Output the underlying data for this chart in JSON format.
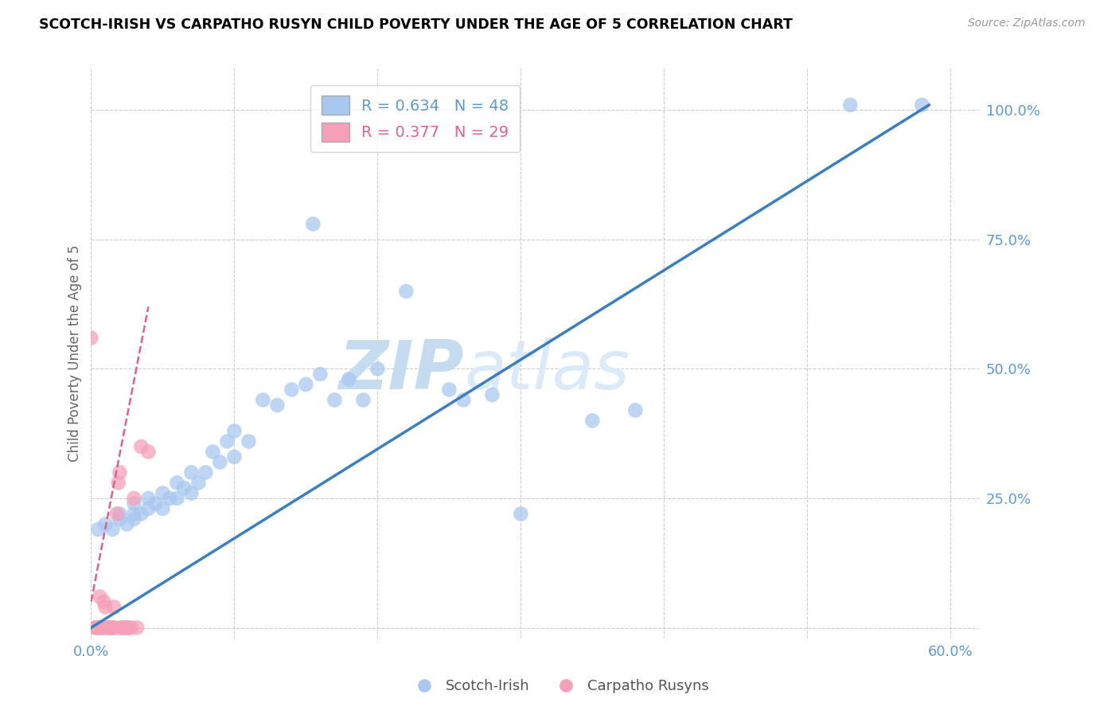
{
  "title": "SCOTCH-IRISH VS CARPATHO RUSYN CHILD POVERTY UNDER THE AGE OF 5 CORRELATION CHART",
  "source": "Source: ZipAtlas.com",
  "ylabel": "Child Poverty Under the Age of 5",
  "xlim": [
    0.0,
    0.62
  ],
  "ylim": [
    -0.02,
    1.08
  ],
  "blue_R": 0.634,
  "blue_N": 48,
  "pink_R": 0.377,
  "pink_N": 29,
  "blue_color": "#a8c8f0",
  "blue_line_color": "#3a7fc1",
  "pink_color": "#f5a0b8",
  "pink_line_color": "#e06090",
  "grid_color": "#cccccc",
  "label_color": "#5b9bd5",
  "watermark_zip_color": "#c8dff5",
  "watermark_atlas_color": "#d8e8f5",
  "scotch_irish_x": [
    0.005,
    0.01,
    0.015,
    0.02,
    0.02,
    0.025,
    0.03,
    0.03,
    0.03,
    0.035,
    0.04,
    0.04,
    0.045,
    0.05,
    0.05,
    0.055,
    0.06,
    0.06,
    0.065,
    0.07,
    0.07,
    0.075,
    0.08,
    0.085,
    0.09,
    0.095,
    0.1,
    0.1,
    0.11,
    0.12,
    0.13,
    0.14,
    0.15,
    0.155,
    0.16,
    0.17,
    0.18,
    0.19,
    0.2,
    0.22,
    0.25,
    0.26,
    0.28,
    0.3,
    0.35,
    0.38,
    0.53,
    0.58
  ],
  "scotch_irish_y": [
    0.19,
    0.2,
    0.19,
    0.21,
    0.22,
    0.2,
    0.21,
    0.22,
    0.24,
    0.22,
    0.23,
    0.25,
    0.24,
    0.23,
    0.26,
    0.25,
    0.25,
    0.28,
    0.27,
    0.26,
    0.3,
    0.28,
    0.3,
    0.34,
    0.32,
    0.36,
    0.33,
    0.38,
    0.36,
    0.44,
    0.43,
    0.46,
    0.47,
    0.78,
    0.49,
    0.44,
    0.48,
    0.44,
    0.5,
    0.65,
    0.46,
    0.44,
    0.45,
    0.22,
    0.4,
    0.42,
    1.01,
    1.01
  ],
  "carpatho_x": [
    0.0,
    0.002,
    0.004,
    0.005,
    0.006,
    0.007,
    0.008,
    0.009,
    0.01,
    0.011,
    0.012,
    0.013,
    0.014,
    0.015,
    0.016,
    0.017,
    0.018,
    0.019,
    0.02,
    0.021,
    0.022,
    0.024,
    0.025,
    0.026,
    0.028,
    0.03,
    0.032,
    0.035,
    0.04
  ],
  "carpatho_y": [
    0.56,
    0.0,
    0.0,
    0.0,
    0.06,
    0.0,
    0.0,
    0.05,
    0.04,
    0.0,
    0.0,
    0.0,
    0.0,
    0.0,
    0.04,
    0.0,
    0.22,
    0.28,
    0.3,
    0.0,
    0.0,
    0.0,
    0.0,
    0.0,
    0.0,
    0.25,
    0.0,
    0.35,
    0.34
  ],
  "blue_line_x0": 0.0,
  "blue_line_y0": 0.0,
  "blue_line_x1": 0.585,
  "blue_line_y1": 1.01,
  "pink_line_x0": 0.0,
  "pink_line_y0": 0.05,
  "pink_line_x1": 0.04,
  "pink_line_y1": 0.62
}
